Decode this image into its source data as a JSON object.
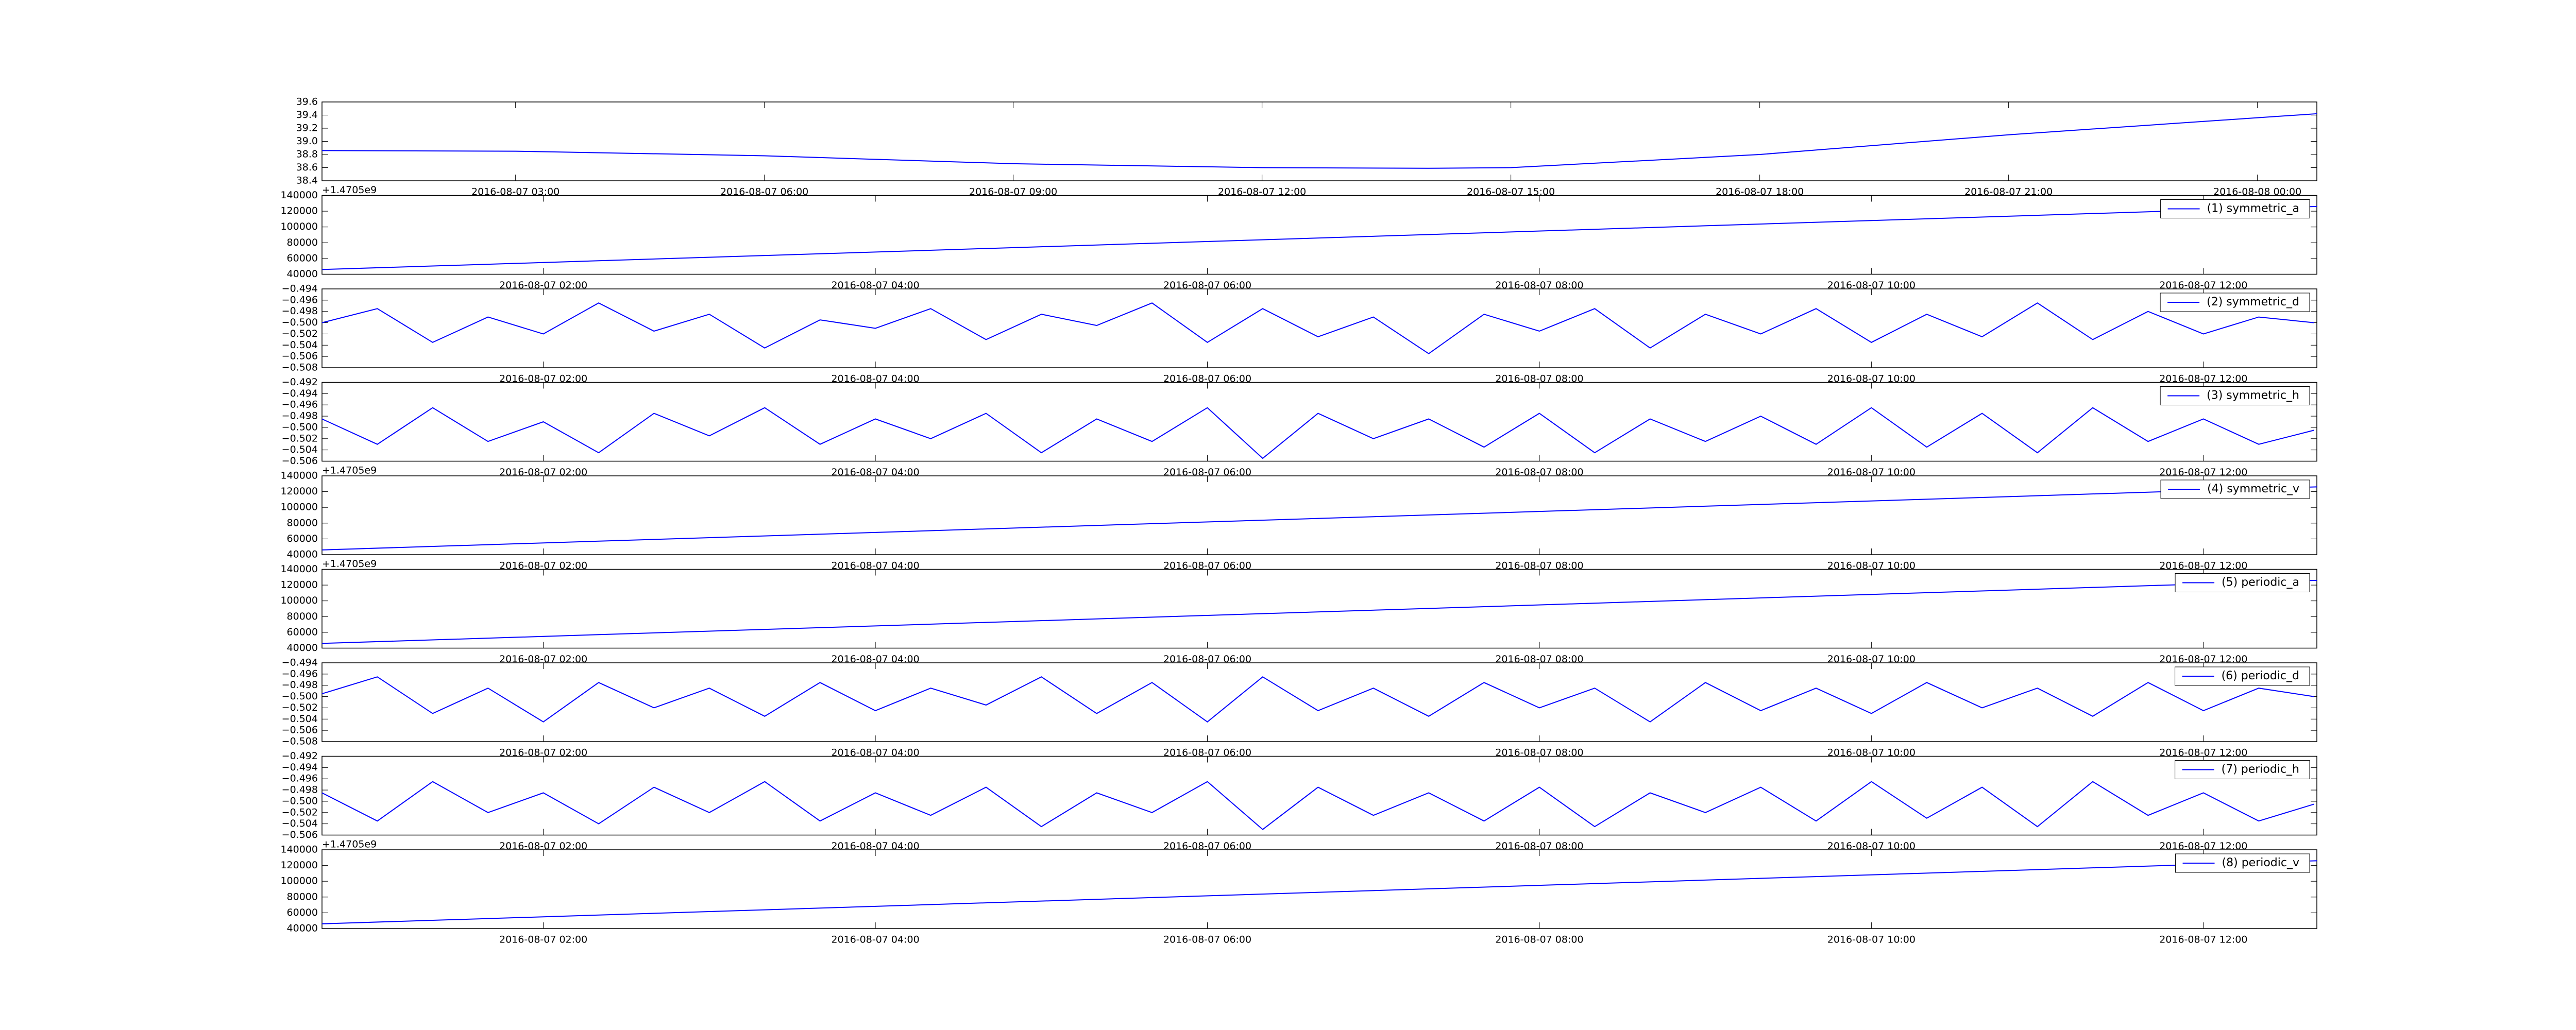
{
  "chart_data": [
    {
      "type": "line",
      "color": "#0000ff",
      "x": [
        "2016-08-07 00:40",
        "2016-08-07 03:00",
        "2016-08-07 06:00",
        "2016-08-07 09:00",
        "2016-08-07 12:00",
        "2016-08-07 14:00",
        "2016-08-07 15:00",
        "2016-08-07 18:00",
        "2016-08-07 21:00",
        "2016-08-08 00:00",
        "2016-08-08 00:43"
      ],
      "values": [
        38.86,
        38.85,
        38.78,
        38.66,
        38.6,
        38.59,
        38.6,
        38.8,
        39.1,
        39.36,
        39.42
      ],
      "xlim": [
        "2016-08-07 00:40",
        "2016-08-08 00:43"
      ],
      "xticks": [
        "2016-08-07 03:00",
        "2016-08-07 06:00",
        "2016-08-07 09:00",
        "2016-08-07 12:00",
        "2016-08-07 15:00",
        "2016-08-07 18:00",
        "2016-08-07 21:00",
        "2016-08-08 00:00"
      ],
      "ylim": [
        38.4,
        39.6
      ],
      "yticks": [
        38.4,
        38.6,
        38.8,
        {
          "value": 39,
          "label": "39.0"
        },
        39.2,
        39.4,
        39.6
      ]
    },
    {
      "type": "line",
      "offset_text": "+1.4705e9",
      "legend": "upper right",
      "x": [
        "2016-08-07 00:40",
        "2016-08-07 12:41"
      ],
      "series": [
        {
          "name": "(1) symmetric_a",
          "color": "#0000ff",
          "values": [
            46000,
            126000
          ]
        }
      ],
      "xlim": [
        "2016-08-07 00:40",
        "2016-08-07 12:41"
      ],
      "xticks": [
        "2016-08-07 02:00",
        "2016-08-07 04:00",
        "2016-08-07 06:00",
        "2016-08-07 08:00",
        "2016-08-07 10:00",
        "2016-08-07 12:00"
      ],
      "ylim": [
        40000,
        140000
      ],
      "yticks": [
        40000,
        60000,
        80000,
        100000,
        120000,
        140000
      ]
    },
    {
      "type": "line",
      "legend": "upper right",
      "x": [
        "2016-08-07 00:40",
        "2016-08-07 01:00",
        "2016-08-07 01:20",
        "2016-08-07 01:40",
        "2016-08-07 02:00",
        "2016-08-07 02:20",
        "2016-08-07 02:40",
        "2016-08-07 03:00",
        "2016-08-07 03:20",
        "2016-08-07 03:40",
        "2016-08-07 04:00",
        "2016-08-07 04:20",
        "2016-08-07 04:40",
        "2016-08-07 05:00",
        "2016-08-07 05:20",
        "2016-08-07 05:40",
        "2016-08-07 06:00",
        "2016-08-07 06:20",
        "2016-08-07 06:40",
        "2016-08-07 07:00",
        "2016-08-07 07:20",
        "2016-08-07 07:40",
        "2016-08-07 08:00",
        "2016-08-07 08:20",
        "2016-08-07 08:40",
        "2016-08-07 09:00",
        "2016-08-07 09:20",
        "2016-08-07 09:40",
        "2016-08-07 10:00",
        "2016-08-07 10:20",
        "2016-08-07 10:40",
        "2016-08-07 11:00",
        "2016-08-07 11:20",
        "2016-08-07 11:40",
        "2016-08-07 12:00",
        "2016-08-07 12:20",
        "2016-08-07 12:40"
      ],
      "series": [
        {
          "name": "(2) symmetric_d",
          "color": "#0000ff",
          "values": [
            -0.5,
            -0.4975,
            -0.5035,
            -0.499,
            -0.502,
            -0.4965,
            -0.5015,
            -0.4985,
            -0.5045,
            -0.4995,
            -0.501,
            -0.4975,
            -0.503,
            -0.4985,
            -0.5005,
            -0.4965,
            -0.5035,
            -0.4975,
            -0.5025,
            -0.499,
            -0.5055,
            -0.4985,
            -0.5015,
            -0.4975,
            -0.5045,
            -0.4985,
            -0.502,
            -0.4975,
            -0.5035,
            -0.4985,
            -0.5025,
            -0.4965,
            -0.503,
            -0.498,
            -0.502,
            -0.499,
            -0.5
          ]
        }
      ],
      "xlim": [
        "2016-08-07 00:40",
        "2016-08-07 12:41"
      ],
      "xticks": [
        "2016-08-07 02:00",
        "2016-08-07 04:00",
        "2016-08-07 06:00",
        "2016-08-07 08:00",
        "2016-08-07 10:00",
        "2016-08-07 12:00"
      ],
      "ylim": [
        -0.508,
        -0.494
      ],
      "yticks": [
        {
          "value": -0.508,
          "label": "−0.508"
        },
        {
          "value": -0.506,
          "label": "−0.506"
        },
        {
          "value": -0.504,
          "label": "−0.504"
        },
        {
          "value": -0.502,
          "label": "−0.502"
        },
        {
          "value": -0.5,
          "label": "−0.500"
        },
        {
          "value": -0.498,
          "label": "−0.498"
        },
        {
          "value": -0.496,
          "label": "−0.496"
        },
        {
          "value": -0.494,
          "label": "−0.494"
        }
      ]
    },
    {
      "type": "line",
      "legend": "upper right",
      "x": [
        "2016-08-07 00:40",
        "2016-08-07 01:00",
        "2016-08-07 01:20",
        "2016-08-07 01:40",
        "2016-08-07 02:00",
        "2016-08-07 02:20",
        "2016-08-07 02:40",
        "2016-08-07 03:00",
        "2016-08-07 03:20",
        "2016-08-07 03:40",
        "2016-08-07 04:00",
        "2016-08-07 04:20",
        "2016-08-07 04:40",
        "2016-08-07 05:00",
        "2016-08-07 05:20",
        "2016-08-07 05:40",
        "2016-08-07 06:00",
        "2016-08-07 06:20",
        "2016-08-07 06:40",
        "2016-08-07 07:00",
        "2016-08-07 07:20",
        "2016-08-07 07:40",
        "2016-08-07 08:00",
        "2016-08-07 08:20",
        "2016-08-07 08:40",
        "2016-08-07 09:00",
        "2016-08-07 09:20",
        "2016-08-07 09:40",
        "2016-08-07 10:00",
        "2016-08-07 10:20",
        "2016-08-07 10:40",
        "2016-08-07 11:00",
        "2016-08-07 11:20",
        "2016-08-07 11:40",
        "2016-08-07 12:00",
        "2016-08-07 12:20",
        "2016-08-07 12:40"
      ],
      "series": [
        {
          "name": "(3) symmetric_h",
          "color": "#0000ff",
          "values": [
            -0.4985,
            -0.503,
            -0.4965,
            -0.5025,
            -0.499,
            -0.5045,
            -0.4975,
            -0.5015,
            -0.4965,
            -0.503,
            -0.4985,
            -0.502,
            -0.4975,
            -0.5045,
            -0.4985,
            -0.5025,
            -0.4965,
            -0.5055,
            -0.4975,
            -0.502,
            -0.4985,
            -0.5035,
            -0.4975,
            -0.5045,
            -0.4985,
            -0.5025,
            -0.498,
            -0.503,
            -0.4965,
            -0.5035,
            -0.4975,
            -0.5045,
            -0.4965,
            -0.5025,
            -0.4985,
            -0.503,
            -0.5005
          ]
        }
      ],
      "xlim": [
        "2016-08-07 00:40",
        "2016-08-07 12:41"
      ],
      "xticks": [
        "2016-08-07 02:00",
        "2016-08-07 04:00",
        "2016-08-07 06:00",
        "2016-08-07 08:00",
        "2016-08-07 10:00",
        "2016-08-07 12:00"
      ],
      "ylim": [
        -0.506,
        -0.492
      ],
      "yticks": [
        {
          "value": -0.506,
          "label": "−0.506"
        },
        {
          "value": -0.504,
          "label": "−0.504"
        },
        {
          "value": -0.502,
          "label": "−0.502"
        },
        {
          "value": -0.5,
          "label": "−0.500"
        },
        {
          "value": -0.498,
          "label": "−0.498"
        },
        {
          "value": -0.496,
          "label": "−0.496"
        },
        {
          "value": -0.494,
          "label": "−0.494"
        },
        {
          "value": -0.492,
          "label": "−0.492"
        }
      ]
    },
    {
      "type": "line",
      "offset_text": "+1.4705e9",
      "legend": "upper right",
      "x": [
        "2016-08-07 00:40",
        "2016-08-07 12:41"
      ],
      "series": [
        {
          "name": "(4) symmetric_v",
          "color": "#0000ff",
          "values": [
            46000,
            126000
          ]
        }
      ],
      "xlim": [
        "2016-08-07 00:40",
        "2016-08-07 12:41"
      ],
      "xticks": [
        "2016-08-07 02:00",
        "2016-08-07 04:00",
        "2016-08-07 06:00",
        "2016-08-07 08:00",
        "2016-08-07 10:00",
        "2016-08-07 12:00"
      ],
      "ylim": [
        40000,
        140000
      ],
      "yticks": [
        40000,
        60000,
        80000,
        100000,
        120000,
        140000
      ]
    },
    {
      "type": "line",
      "offset_text": "+1.4705e9",
      "legend": "upper right",
      "x": [
        "2016-08-07 00:40",
        "2016-08-07 12:41"
      ],
      "series": [
        {
          "name": "(5) periodic_a",
          "color": "#0000ff",
          "values": [
            46000,
            126000
          ]
        }
      ],
      "xlim": [
        "2016-08-07 00:40",
        "2016-08-07 12:41"
      ],
      "xticks": [
        "2016-08-07 02:00",
        "2016-08-07 04:00",
        "2016-08-07 06:00",
        "2016-08-07 08:00",
        "2016-08-07 10:00",
        "2016-08-07 12:00"
      ],
      "ylim": [
        40000,
        140000
      ],
      "yticks": [
        40000,
        60000,
        80000,
        100000,
        120000,
        140000
      ]
    },
    {
      "type": "line",
      "legend": "upper right",
      "x": [
        "2016-08-07 00:40",
        "2016-08-07 01:00",
        "2016-08-07 01:20",
        "2016-08-07 01:40",
        "2016-08-07 02:00",
        "2016-08-07 02:20",
        "2016-08-07 02:40",
        "2016-08-07 03:00",
        "2016-08-07 03:20",
        "2016-08-07 03:40",
        "2016-08-07 04:00",
        "2016-08-07 04:20",
        "2016-08-07 04:40",
        "2016-08-07 05:00",
        "2016-08-07 05:20",
        "2016-08-07 05:40",
        "2016-08-07 06:00",
        "2016-08-07 06:20",
        "2016-08-07 06:40",
        "2016-08-07 07:00",
        "2016-08-07 07:20",
        "2016-08-07 07:40",
        "2016-08-07 08:00",
        "2016-08-07 08:20",
        "2016-08-07 08:40",
        "2016-08-07 09:00",
        "2016-08-07 09:20",
        "2016-08-07 09:40",
        "2016-08-07 10:00",
        "2016-08-07 10:20",
        "2016-08-07 10:40",
        "2016-08-07 11:00",
        "2016-08-07 11:20",
        "2016-08-07 11:40",
        "2016-08-07 12:00",
        "2016-08-07 12:20",
        "2016-08-07 12:40"
      ],
      "series": [
        {
          "name": "(6) periodic_d",
          "color": "#0000ff",
          "values": [
            -0.4995,
            -0.4965,
            -0.503,
            -0.4985,
            -0.5045,
            -0.4975,
            -0.502,
            -0.4985,
            -0.5035,
            -0.4975,
            -0.5025,
            -0.4985,
            -0.5015,
            -0.4965,
            -0.503,
            -0.4975,
            -0.5045,
            -0.4965,
            -0.5025,
            -0.4985,
            -0.5035,
            -0.4975,
            -0.502,
            -0.4985,
            -0.5045,
            -0.4975,
            -0.5025,
            -0.4985,
            -0.503,
            -0.4975,
            -0.502,
            -0.4985,
            -0.5035,
            -0.4975,
            -0.5025,
            -0.4985,
            -0.5
          ]
        }
      ],
      "xlim": [
        "2016-08-07 00:40",
        "2016-08-07 12:41"
      ],
      "xticks": [
        "2016-08-07 02:00",
        "2016-08-07 04:00",
        "2016-08-07 06:00",
        "2016-08-07 08:00",
        "2016-08-07 10:00",
        "2016-08-07 12:00"
      ],
      "ylim": [
        -0.508,
        -0.494
      ],
      "yticks": [
        {
          "value": -0.508,
          "label": "−0.508"
        },
        {
          "value": -0.506,
          "label": "−0.506"
        },
        {
          "value": -0.504,
          "label": "−0.504"
        },
        {
          "value": -0.502,
          "label": "−0.502"
        },
        {
          "value": -0.5,
          "label": "−0.500"
        },
        {
          "value": -0.498,
          "label": "−0.498"
        },
        {
          "value": -0.496,
          "label": "−0.496"
        },
        {
          "value": -0.494,
          "label": "−0.494"
        }
      ]
    },
    {
      "type": "line",
      "legend": "upper right",
      "x": [
        "2016-08-07 00:40",
        "2016-08-07 01:00",
        "2016-08-07 01:20",
        "2016-08-07 01:40",
        "2016-08-07 02:00",
        "2016-08-07 02:20",
        "2016-08-07 02:40",
        "2016-08-07 03:00",
        "2016-08-07 03:20",
        "2016-08-07 03:40",
        "2016-08-07 04:00",
        "2016-08-07 04:20",
        "2016-08-07 04:40",
        "2016-08-07 05:00",
        "2016-08-07 05:20",
        "2016-08-07 05:40",
        "2016-08-07 06:00",
        "2016-08-07 06:20",
        "2016-08-07 06:40",
        "2016-08-07 07:00",
        "2016-08-07 07:20",
        "2016-08-07 07:40",
        "2016-08-07 08:00",
        "2016-08-07 08:20",
        "2016-08-07 08:40",
        "2016-08-07 09:00",
        "2016-08-07 09:20",
        "2016-08-07 09:40",
        "2016-08-07 10:00",
        "2016-08-07 10:20",
        "2016-08-07 10:40",
        "2016-08-07 11:00",
        "2016-08-07 11:20",
        "2016-08-07 11:40",
        "2016-08-07 12:00",
        "2016-08-07 12:20",
        "2016-08-07 12:40"
      ],
      "series": [
        {
          "name": "(7) periodic_h",
          "color": "#0000ff",
          "values": [
            -0.4985,
            -0.5035,
            -0.4965,
            -0.502,
            -0.4985,
            -0.504,
            -0.4975,
            -0.502,
            -0.4965,
            -0.5035,
            -0.4985,
            -0.5025,
            -0.4975,
            -0.5045,
            -0.4985,
            -0.502,
            -0.4965,
            -0.505,
            -0.4975,
            -0.5025,
            -0.4985,
            -0.5035,
            -0.4975,
            -0.5045,
            -0.4985,
            -0.502,
            -0.4975,
            -0.5035,
            -0.4965,
            -0.503,
            -0.4975,
            -0.5045,
            -0.4965,
            -0.5025,
            -0.4985,
            -0.5035,
            -0.5005
          ]
        }
      ],
      "xlim": [
        "2016-08-07 00:40",
        "2016-08-07 12:41"
      ],
      "xticks": [
        "2016-08-07 02:00",
        "2016-08-07 04:00",
        "2016-08-07 06:00",
        "2016-08-07 08:00",
        "2016-08-07 10:00",
        "2016-08-07 12:00"
      ],
      "ylim": [
        -0.506,
        -0.492
      ],
      "yticks": [
        {
          "value": -0.506,
          "label": "−0.506"
        },
        {
          "value": -0.504,
          "label": "−0.504"
        },
        {
          "value": -0.502,
          "label": "−0.502"
        },
        {
          "value": -0.5,
          "label": "−0.500"
        },
        {
          "value": -0.498,
          "label": "−0.498"
        },
        {
          "value": -0.496,
          "label": "−0.496"
        },
        {
          "value": -0.494,
          "label": "−0.494"
        },
        {
          "value": -0.492,
          "label": "−0.492"
        }
      ]
    },
    {
      "type": "line",
      "offset_text": "+1.4705e9",
      "legend": "upper right",
      "x": [
        "2016-08-07 00:40",
        "2016-08-07 12:41"
      ],
      "series": [
        {
          "name": "(8) periodic_v",
          "color": "#0000ff",
          "values": [
            46000,
            126000
          ]
        }
      ],
      "xlim": [
        "2016-08-07 00:40",
        "2016-08-07 12:41"
      ],
      "xticks": [
        "2016-08-07 02:00",
        "2016-08-07 04:00",
        "2016-08-07 06:00",
        "2016-08-07 08:00",
        "2016-08-07 10:00",
        "2016-08-07 12:00"
      ],
      "ylim": [
        40000,
        140000
      ],
      "yticks": [
        40000,
        60000,
        80000,
        100000,
        120000,
        140000
      ]
    }
  ]
}
